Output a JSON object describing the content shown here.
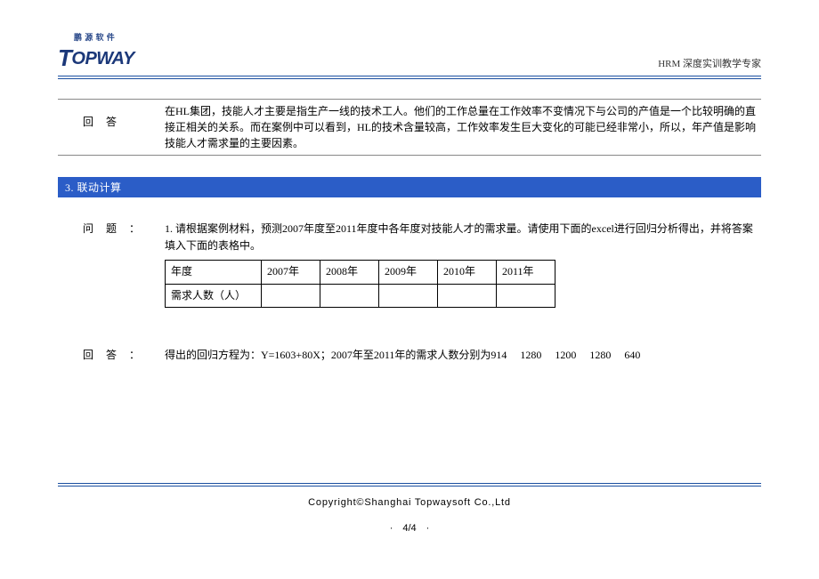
{
  "header": {
    "logo_cn": "鹏 源 软 件",
    "logo_en_t": "T",
    "logo_en_rest": "OPWAY",
    "right_text": "HRM 深度实训教学专家"
  },
  "colors": {
    "brand_blue": "#1b4fa0",
    "bar_blue": "#2b5dc7",
    "text": "#000000",
    "white": "#ffffff"
  },
  "answer1": {
    "label": "回答",
    "text": "在HL集团，技能人才主要是指生产一线的技术工人。他们的工作总量在工作效率不变情况下与公司的产值是一个比较明确的直接正相关的关系。而在案例中可以看到，HL的技术含量较高，工作效率发生巨大变化的可能已经非常小，所以，年产值是影响技能人才需求量的主要因素。"
  },
  "section_bar": "3. 联动计算",
  "question": {
    "label": "问题：",
    "text": "1. 请根据案例材料，预测2007年度至2011年度中各年度对技能人才的需求量。请使用下面的excel进行回归分析得出，并将答案填入下面的表格中。"
  },
  "table": {
    "row1_label": "年度",
    "years": [
      "2007年",
      "2008年",
      "2009年",
      "2010年",
      "2011年"
    ],
    "row2_label": "需求人数（人）",
    "values": [
      "",
      "",
      "",
      "",
      ""
    ]
  },
  "answer2": {
    "label": "回答：",
    "text": "得出的回归方程为：Y=1603+80X；2007年至2011年的需求人数分别为914 1280 1200 1280 640"
  },
  "footer": {
    "copyright": "Copyright©Shanghai Topwaysoft Co.,Ltd",
    "page": "·　4/4　·"
  }
}
